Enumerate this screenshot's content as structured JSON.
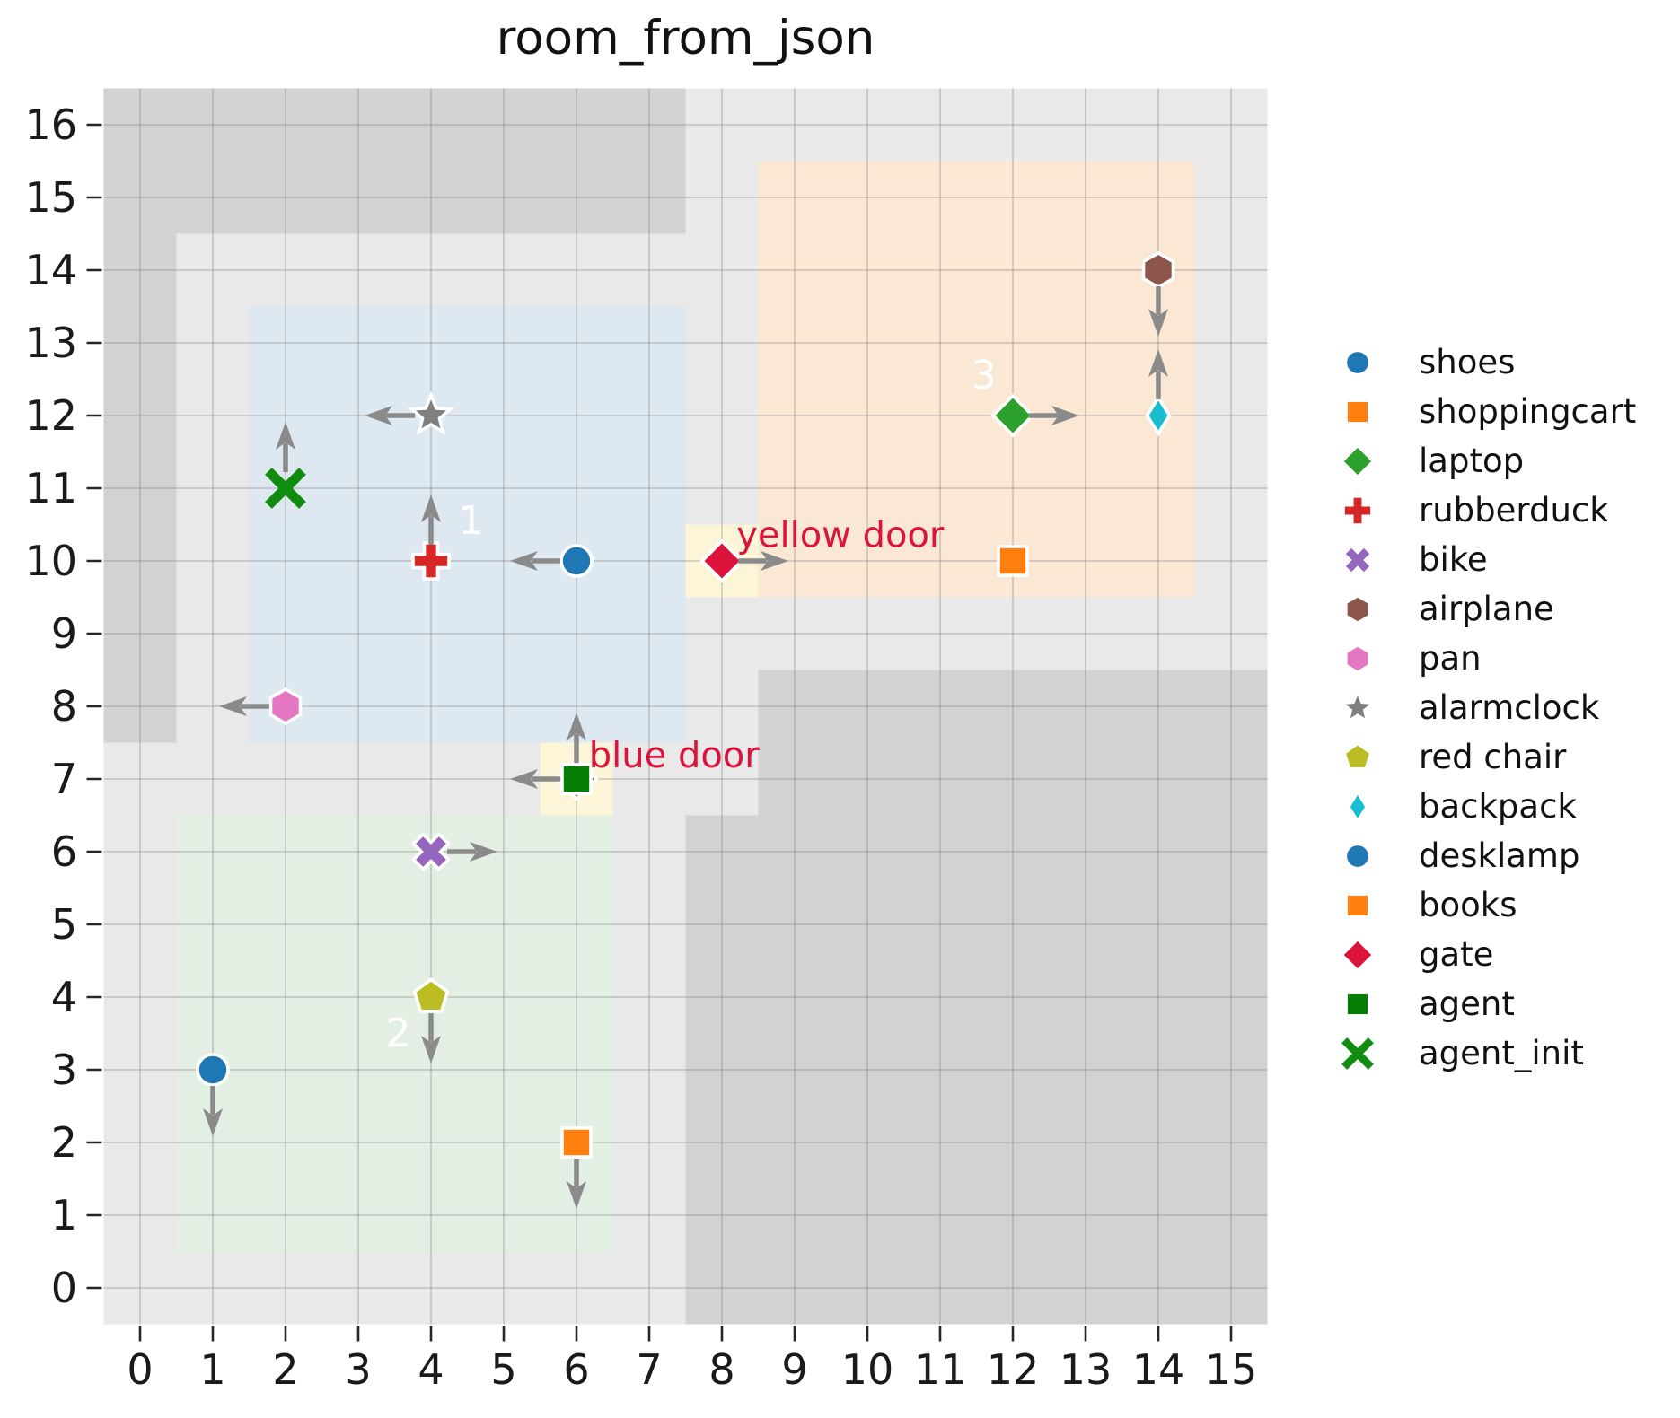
{
  "chart_data": {
    "type": "scatter",
    "title": "room_from_json",
    "x_ticks": [
      0,
      1,
      2,
      3,
      4,
      5,
      6,
      7,
      8,
      9,
      10,
      11,
      12,
      13,
      14,
      15
    ],
    "y_ticks": [
      0,
      1,
      2,
      3,
      4,
      5,
      6,
      7,
      8,
      9,
      10,
      11,
      12,
      13,
      14,
      15,
      16
    ],
    "x_range": [
      -0.5,
      15.5
    ],
    "y_range": [
      -0.5,
      16.5
    ],
    "grid": true,
    "palette": {
      "floor": "#e9e9e9",
      "wall": "#d2d2d2",
      "door_cell": "#fdf5d8",
      "grid_line": "rgba(128,128,128,0.40)",
      "arrow": "#8a8a8a",
      "door_text": "#dc143c",
      "room_label_text": "#ffffff",
      "tick": "#262626",
      "text": "#111111"
    },
    "walls": [
      {
        "name": "wall-top-left",
        "bounds": [
          -0.5,
          14.5,
          7.5,
          16.5
        ]
      },
      {
        "name": "wall-left-column",
        "bounds": [
          -0.5,
          7.5,
          0.5,
          14.5
        ]
      },
      {
        "name": "wall-bottom-right",
        "bounds": [
          8.5,
          -0.5,
          15.5,
          8.5
        ]
      },
      {
        "name": "wall-bottom-mid",
        "bounds": [
          7.5,
          -0.5,
          8.5,
          6.5
        ]
      }
    ],
    "rooms": [
      {
        "id": "1",
        "label": "1",
        "bounds": [
          1.5,
          7.5,
          7.5,
          13.5
        ],
        "color": "#dee8f1",
        "label_pos": [
          4.55,
          10.55
        ]
      },
      {
        "id": "2",
        "label": "2",
        "bounds": [
          0.5,
          0.5,
          6.5,
          6.5
        ],
        "color": "#e3efe2",
        "label_pos": [
          3.55,
          3.5
        ]
      },
      {
        "id": "3",
        "label": "3",
        "bounds": [
          8.5,
          9.5,
          14.5,
          15.5
        ],
        "color": "#fae8d5",
        "label_pos": [
          11.6,
          12.55
        ]
      }
    ],
    "doors": [
      {
        "name": "yellow door",
        "cell": [
          7.5,
          9.5,
          8.5,
          10.5
        ],
        "label": "yellow door",
        "label_pos": [
          8.2,
          10.35
        ]
      },
      {
        "name": "blue door",
        "cell": [
          5.5,
          6.5,
          6.5,
          7.5
        ],
        "label": "blue door",
        "label_pos": [
          6.17,
          7.32
        ]
      }
    ],
    "objects": [
      {
        "name": "shoes",
        "marker": "circle",
        "color": "#1f77b4",
        "x": 6,
        "y": 10,
        "dir": "left"
      },
      {
        "name": "shoppingcart",
        "marker": "square",
        "color": "#ff7f0e",
        "x": 12,
        "y": 10,
        "dir": null
      },
      {
        "name": "laptop",
        "marker": "diamond",
        "color": "#2ca02c",
        "x": 12,
        "y": 12,
        "dir": "right"
      },
      {
        "name": "rubberduck",
        "marker": "plus",
        "color": "#d62728",
        "x": 4,
        "y": 10,
        "dir": "up"
      },
      {
        "name": "bike",
        "marker": "x",
        "color": "#9467bd",
        "x": 4,
        "y": 6,
        "dir": "right"
      },
      {
        "name": "airplane",
        "marker": "hexagon",
        "color": "#8c564b",
        "x": 14,
        "y": 14,
        "dir": "down"
      },
      {
        "name": "pan",
        "marker": "hexagon",
        "color": "#e377c2",
        "x": 2,
        "y": 8,
        "dir": "left"
      },
      {
        "name": "alarmclock",
        "marker": "star",
        "color": "#7f7f7f",
        "x": 4,
        "y": 12,
        "dir": "left"
      },
      {
        "name": "red chair",
        "marker": "pentagon",
        "color": "#bcbd22",
        "x": 4,
        "y": 4,
        "dir": "down"
      },
      {
        "name": "backpack",
        "marker": "thin-diamond",
        "color": "#17becf",
        "x": 14,
        "y": 12,
        "dir": "up"
      },
      {
        "name": "desklamp",
        "marker": "circle",
        "color": "#1f77b4",
        "x": 1,
        "y": 3,
        "dir": "down"
      },
      {
        "name": "books",
        "marker": "square",
        "color": "#ff7f0e",
        "x": 6,
        "y": 2,
        "dir": "down"
      },
      {
        "name": "blue door",
        "marker": "diamond",
        "color": "#dc143c",
        "x": 6,
        "y": 7,
        "dir": "up"
      },
      {
        "name": "gate",
        "marker": "diamond",
        "color": "#dc143c",
        "x": 8,
        "y": 10,
        "dir": "right"
      },
      {
        "name": "agent",
        "marker": "square",
        "color": "#067e06",
        "x": 6,
        "y": 7,
        "dir": "left"
      },
      {
        "name": "agent_init",
        "marker": "x-line",
        "color": "#108c10",
        "x": 2,
        "y": 11,
        "dir": "up"
      }
    ],
    "legend": [
      {
        "label": "shoes",
        "marker": "circle",
        "color": "#1f77b4"
      },
      {
        "label": "shoppingcart",
        "marker": "square",
        "color": "#ff7f0e"
      },
      {
        "label": "laptop",
        "marker": "diamond",
        "color": "#2ca02c"
      },
      {
        "label": "rubberduck",
        "marker": "plus",
        "color": "#d62728"
      },
      {
        "label": "bike",
        "marker": "x",
        "color": "#9467bd"
      },
      {
        "label": "airplane",
        "marker": "hexagon",
        "color": "#8c564b"
      },
      {
        "label": "pan",
        "marker": "hexagon",
        "color": "#e377c2"
      },
      {
        "label": "alarmclock",
        "marker": "star",
        "color": "#7f7f7f"
      },
      {
        "label": "red chair",
        "marker": "pentagon",
        "color": "#bcbd22"
      },
      {
        "label": "backpack",
        "marker": "thin-diamond",
        "color": "#17becf"
      },
      {
        "label": "desklamp",
        "marker": "circle",
        "color": "#1f77b4"
      },
      {
        "label": "books",
        "marker": "square",
        "color": "#ff7f0e"
      },
      {
        "label": "gate",
        "marker": "diamond",
        "color": "#dc143c"
      },
      {
        "label": "agent",
        "marker": "square",
        "color": "#067e06"
      },
      {
        "label": "agent_init",
        "marker": "x-line",
        "color": "#108c10"
      }
    ]
  }
}
